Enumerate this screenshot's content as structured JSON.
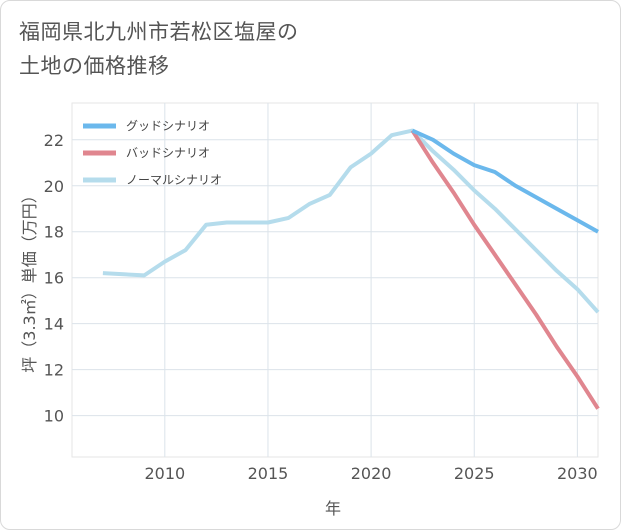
{
  "title_lines": [
    "福岡県北九州市若松区塩屋の",
    "土地の価格推移"
  ],
  "chart_data": {
    "type": "line",
    "title": "福岡県北九州市若松区塩屋の土地の価格推移",
    "xlabel": "年",
    "ylabel": "坪（3.3㎡）単価（万円）",
    "xlim": [
      2005.5,
      2031
    ],
    "ylim": [
      8.2,
      23.6
    ],
    "xticks": [
      2010,
      2015,
      2020,
      2025,
      2030
    ],
    "yticks": [
      10,
      12,
      14,
      16,
      18,
      20,
      22
    ],
    "grid": true,
    "legend_position": "top-left",
    "series": [
      {
        "name": "グッドシナリオ",
        "color": "#6bb8ec",
        "x": [
          2022,
          2023,
          2024,
          2025,
          2026,
          2027,
          2028,
          2029,
          2030,
          2031
        ],
        "values": [
          22.4,
          22.0,
          21.4,
          20.9,
          20.6,
          20.0,
          19.5,
          19.0,
          18.5,
          18.0
        ]
      },
      {
        "name": "バッドシナリオ",
        "color": "#e0868f",
        "x": [
          2022,
          2023,
          2024,
          2025,
          2026,
          2027,
          2028,
          2029,
          2030,
          2031
        ],
        "values": [
          22.4,
          21.0,
          19.7,
          18.3,
          17.0,
          15.7,
          14.4,
          13.0,
          11.7,
          10.3
        ]
      },
      {
        "name": "ノーマルシナリオ",
        "color": "#b5dcec",
        "x": [
          2007,
          2008,
          2009,
          2010,
          2011,
          2012,
          2013,
          2014,
          2015,
          2016,
          2017,
          2018,
          2019,
          2020,
          2021,
          2022,
          2023,
          2024,
          2025,
          2026,
          2027,
          2028,
          2029,
          2030,
          2031
        ],
        "values": [
          16.2,
          16.15,
          16.1,
          16.7,
          17.2,
          18.3,
          18.4,
          18.4,
          18.4,
          18.6,
          19.2,
          19.6,
          20.8,
          21.4,
          22.2,
          22.4,
          21.5,
          20.7,
          19.8,
          19.0,
          18.1,
          17.2,
          16.3,
          15.5,
          14.5
        ]
      }
    ]
  }
}
